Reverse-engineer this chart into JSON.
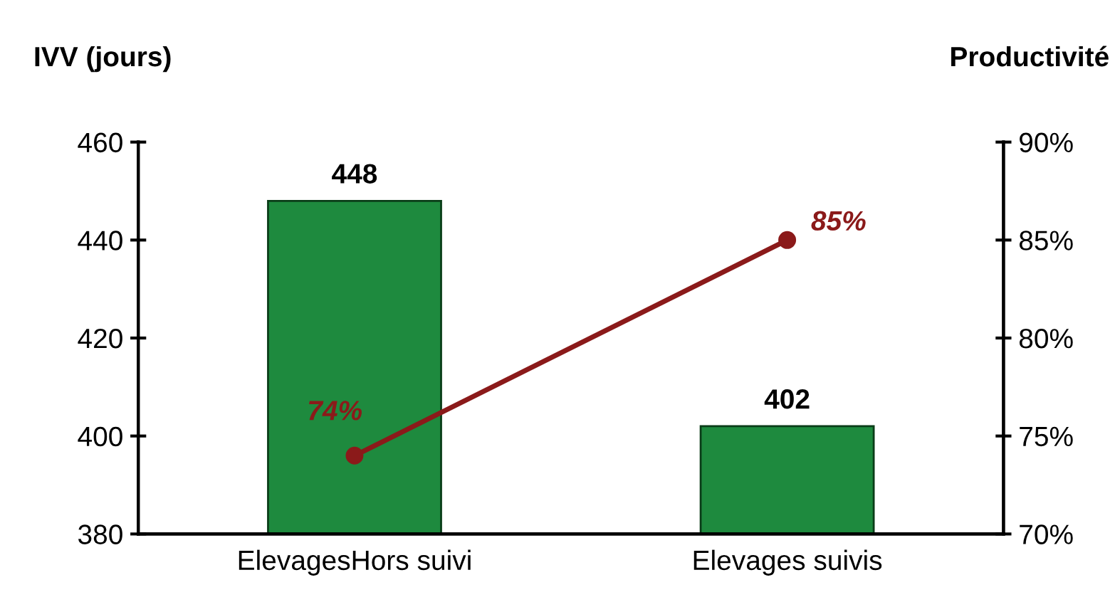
{
  "chart_data": {
    "type": "bar",
    "ylabel": "IVV (jours)",
    "y2label": "Productivité",
    "categories": [
      "ElevagesHors suivi",
      "Elevages suivis"
    ],
    "series": [
      {
        "color": "#1e8a3e",
        "values": [
          448,
          402
        ],
        "value_labels": [
          "448",
          "402"
        ]
      },
      {
        "type": "line",
        "axis": "y2",
        "color": "#8b1a1a",
        "values": [
          74,
          85
        ],
        "value_labels": [
          "74%",
          "85%"
        ],
        "marker": "circle",
        "line_style": "solid"
      }
    ],
    "ylim": [
      380,
      460
    ],
    "yticks": [
      380,
      400,
      420,
      440,
      460
    ],
    "y2lim": [
      70,
      90
    ],
    "y2ticks": [
      {
        "value": 70,
        "label": "70%"
      },
      {
        "value": 75,
        "label": "75%"
      },
      {
        "value": 80,
        "label": "80%"
      },
      {
        "value": 85,
        "label": "85%"
      },
      {
        "value": 90,
        "label": "90%"
      }
    ],
    "grid": false
  }
}
